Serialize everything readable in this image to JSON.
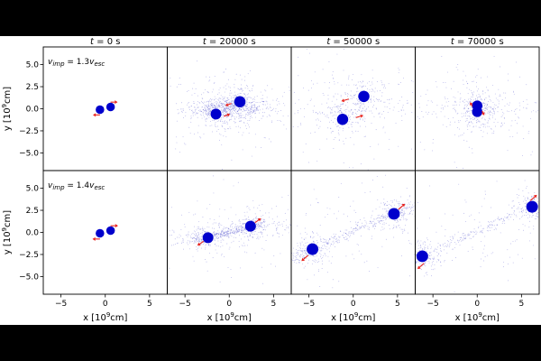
{
  "chart_data": {
    "type": "scatter",
    "layout": "grid",
    "grid": {
      "rows": 2,
      "cols": 4
    },
    "title": "",
    "column_titles": [
      {
        "var": "t",
        "rest": " = 0 s"
      },
      {
        "var": "t",
        "rest": " = 20000 s"
      },
      {
        "var": "t",
        "rest": " = 50000 s"
      },
      {
        "var": "t",
        "rest": " = 70000 s"
      }
    ],
    "row_labels": [
      {
        "base": "v",
        "sub": "imp",
        "eq": " = 1.3",
        "var": "v",
        "vsub": "esc"
      },
      {
        "base": "v",
        "sub": "imp",
        "eq": " = 1.4",
        "var": "v",
        "vsub": "esc"
      }
    ],
    "xlabel": {
      "pre": "x [10",
      "sup": "9",
      "post": "cm]"
    },
    "ylabel": {
      "pre": "y [10",
      "sup": "9",
      "post": "cm]"
    },
    "xlim": [
      -7,
      7
    ],
    "ylim": [
      -7,
      7
    ],
    "xticks": [
      -5,
      0,
      5
    ],
    "xtick_labels": [
      "−5",
      "0",
      "5"
    ],
    "yticks": [
      5,
      2.5,
      0,
      -2.5,
      -5
    ],
    "ytick_labels": [
      "5.0",
      "2.5",
      "0.0",
      "−2.5",
      "−5.0"
    ],
    "colors": {
      "body": "#0000cc",
      "debris": "#4a4acc",
      "arrow": "#e8231d"
    },
    "panels": [
      {
        "row": 0,
        "col": 0,
        "debris": "none",
        "bodies": [
          {
            "x": -0.6,
            "y": -0.1,
            "r": 0.5
          },
          {
            "x": 0.6,
            "y": 0.2,
            "r": 0.5
          }
        ],
        "arrows": [
          {
            "x": -0.6,
            "y": -0.7,
            "dx": -0.8,
            "dy": 0
          },
          {
            "x": 0.6,
            "y": 0.75,
            "dx": 0.8,
            "dy": 0
          }
        ]
      },
      {
        "row": 0,
        "col": 1,
        "debris": "disk",
        "bodies": [
          {
            "x": -1.5,
            "y": -0.6,
            "r": 0.75
          },
          {
            "x": 1.2,
            "y": 0.8,
            "r": 0.8
          }
        ],
        "arrows": [
          {
            "x": -0.6,
            "y": -0.85,
            "dx": 0.7,
            "dy": 0.25
          },
          {
            "x": 0.25,
            "y": 0.6,
            "dx": -0.7,
            "dy": -0.25
          }
        ]
      },
      {
        "row": 0,
        "col": 2,
        "debris": "sparse",
        "bodies": [
          {
            "x": -1.2,
            "y": -1.2,
            "r": 0.8
          },
          {
            "x": 1.2,
            "y": 1.4,
            "r": 0.8
          }
        ],
        "arrows": [
          {
            "x": -0.5,
            "y": 1.1,
            "dx": -0.85,
            "dy": -0.25
          },
          {
            "x": 0.3,
            "y": -1.0,
            "dx": 0.85,
            "dy": 0.25
          }
        ]
      },
      {
        "row": 0,
        "col": 3,
        "debris": "sparse",
        "bodies": [
          {
            "x": 0,
            "y": 0.35,
            "r": 0.7
          },
          {
            "x": 0,
            "y": -0.35,
            "r": 0.7
          }
        ],
        "arrows": [
          {
            "x": -0.55,
            "y": 0.25,
            "dx": -0.25,
            "dy": 0.5
          },
          {
            "x": 0.55,
            "y": -0.25,
            "dx": 0.25,
            "dy": -0.5
          }
        ]
      },
      {
        "row": 1,
        "col": 0,
        "debris": "none",
        "bodies": [
          {
            "x": -0.6,
            "y": -0.1,
            "r": 0.5
          },
          {
            "x": 0.6,
            "y": 0.2,
            "r": 0.5
          }
        ],
        "arrows": [
          {
            "x": -0.6,
            "y": -0.75,
            "dx": -0.85,
            "dy": 0
          },
          {
            "x": 0.6,
            "y": 0.75,
            "dx": 0.85,
            "dy": 0
          }
        ]
      },
      {
        "row": 1,
        "col": 1,
        "debris": "stream",
        "bodies": [
          {
            "x": -2.4,
            "y": -0.6,
            "r": 0.75
          },
          {
            "x": 2.4,
            "y": 0.7,
            "r": 0.75
          }
        ],
        "arrows": [
          {
            "x": -2.9,
            "y": -1.0,
            "dx": -0.7,
            "dy": -0.5
          },
          {
            "x": 2.9,
            "y": 1.1,
            "dx": 0.7,
            "dy": 0.5
          }
        ]
      },
      {
        "row": 1,
        "col": 2,
        "debris": "line",
        "bodies": [
          {
            "x": -4.6,
            "y": -1.9,
            "r": 0.85
          },
          {
            "x": 4.6,
            "y": 2.1,
            "r": 0.85
          }
        ],
        "arrows": [
          {
            "x": -5.1,
            "y": -2.6,
            "dx": -0.75,
            "dy": -0.65
          },
          {
            "x": 5.1,
            "y": 2.6,
            "dx": 0.75,
            "dy": 0.65
          }
        ]
      },
      {
        "row": 1,
        "col": 3,
        "debris": "line",
        "bodies": [
          {
            "x": -6.2,
            "y": -2.7,
            "r": 0.85
          },
          {
            "x": 6.2,
            "y": 2.9,
            "r": 0.85
          }
        ],
        "arrows": [
          {
            "x": -6.0,
            "y": -3.5,
            "dx": -0.75,
            "dy": -0.65
          },
          {
            "x": 6.0,
            "y": 3.6,
            "dx": 0.75,
            "dy": 0.65
          }
        ]
      }
    ]
  }
}
